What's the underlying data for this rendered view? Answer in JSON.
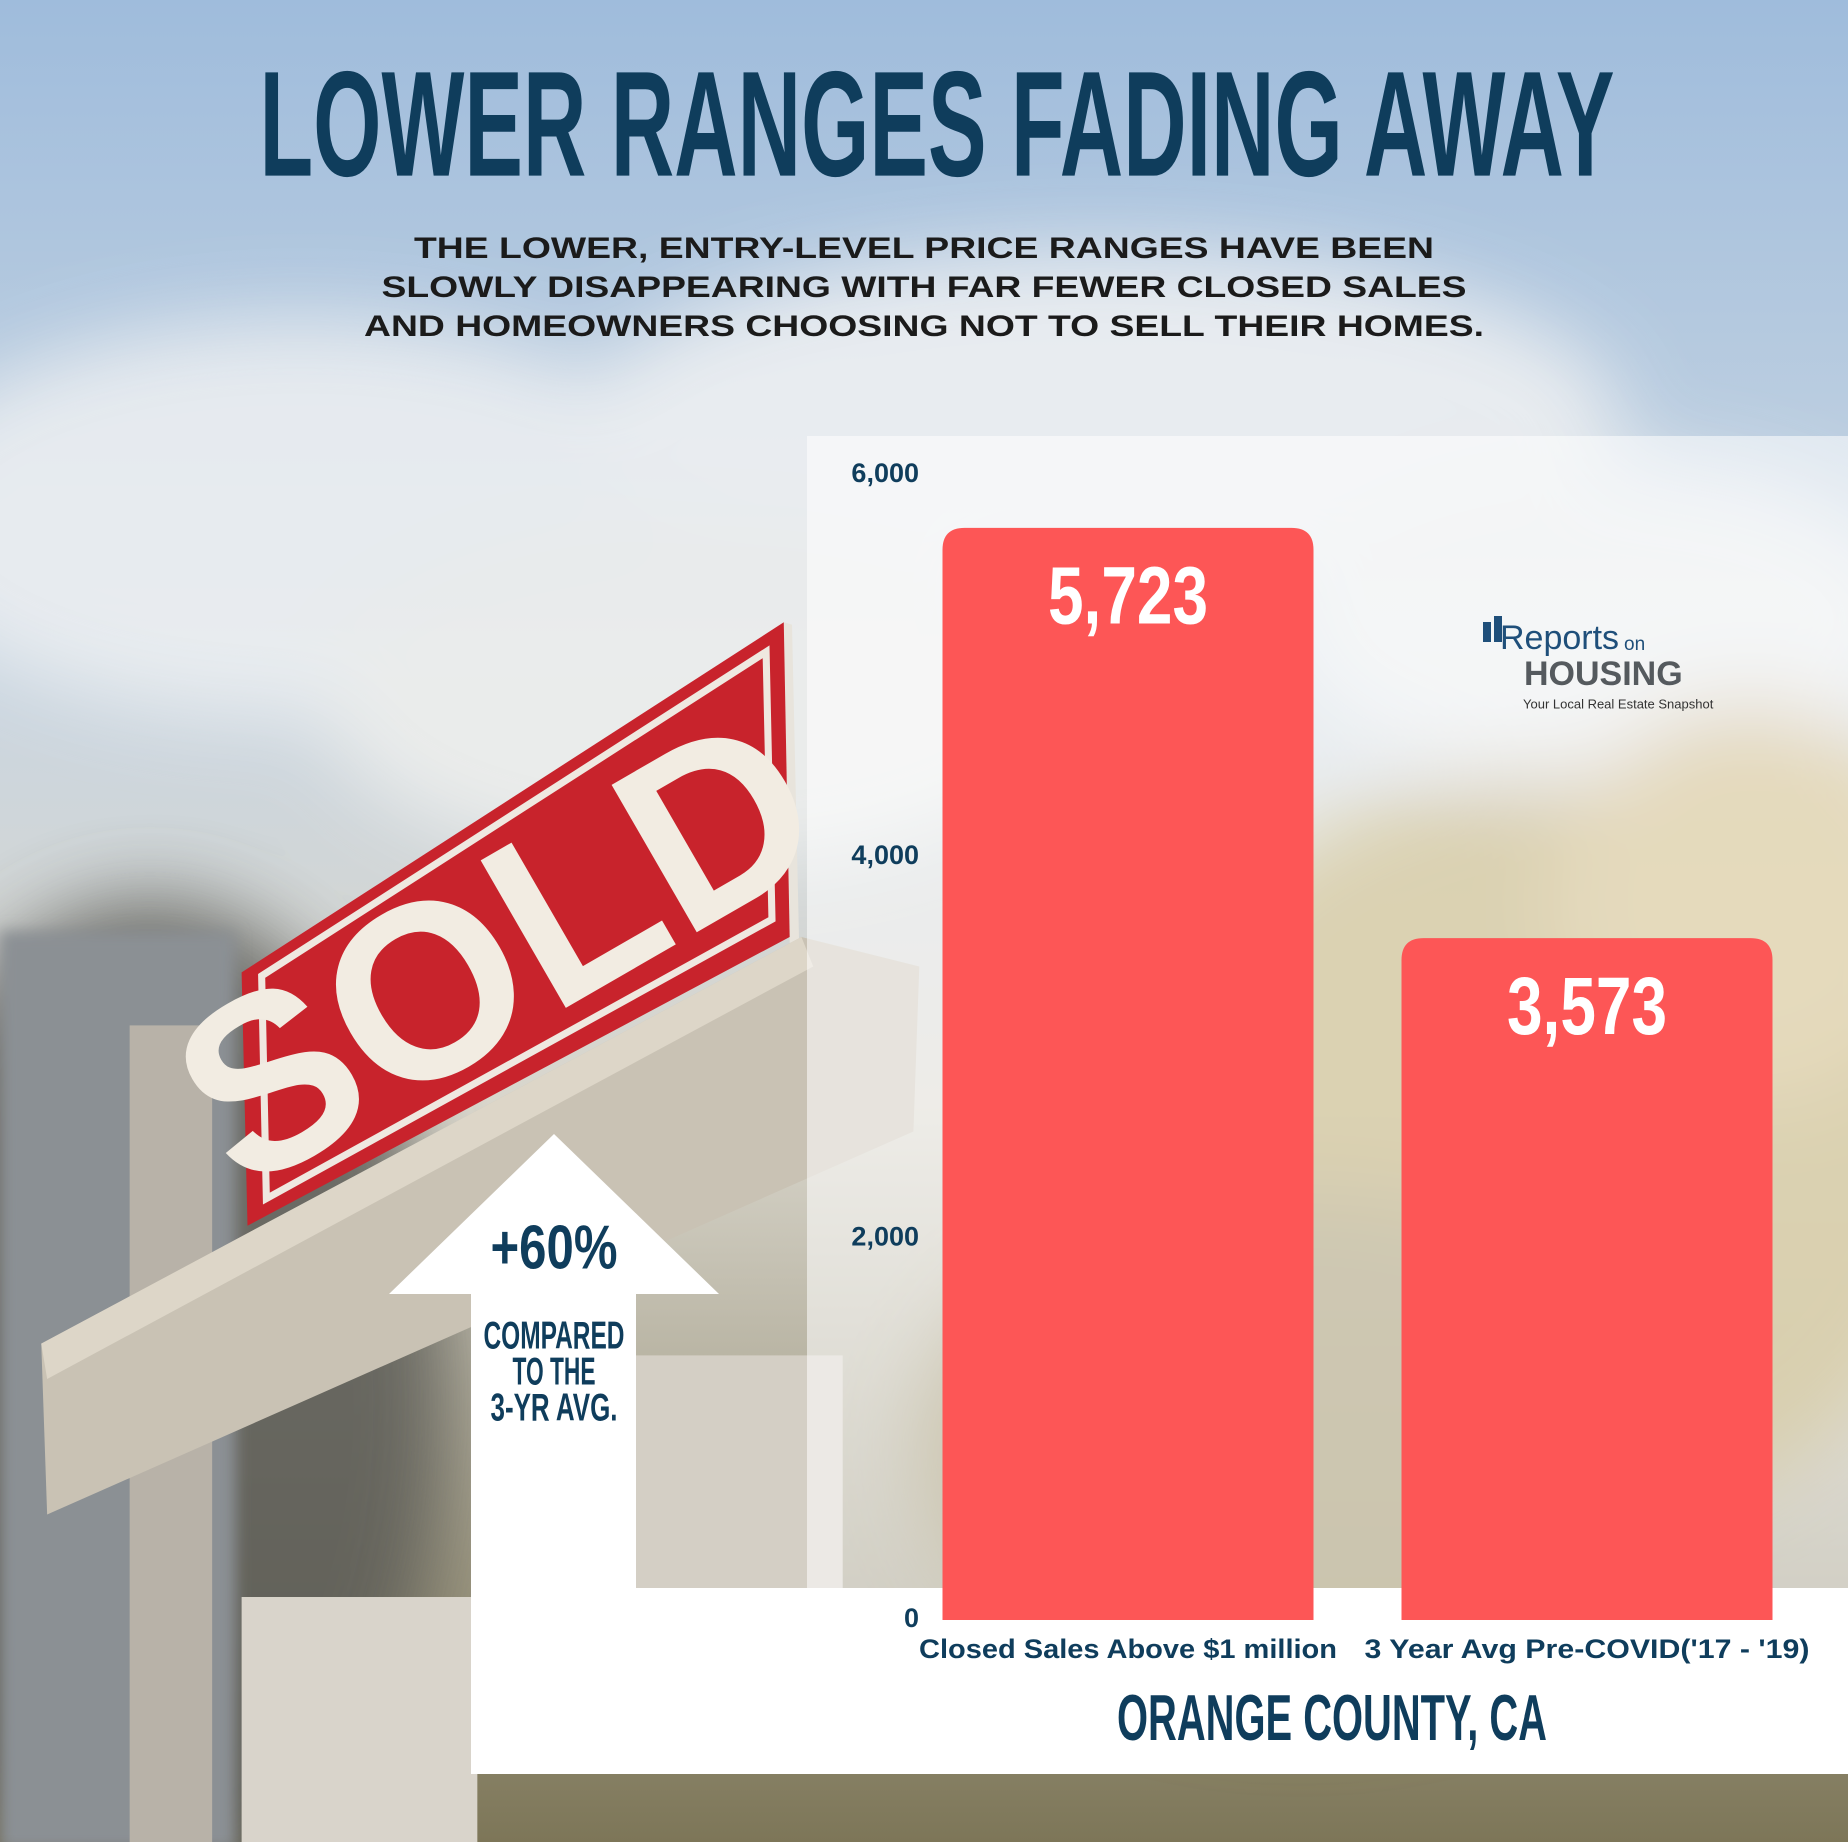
{
  "chart_data": {
    "type": "bar",
    "title": "LOWER RANGES FADING AWAY",
    "subtitle": [
      "THE LOWER, ENTRY-LEVEL PRICE RANGES HAVE BEEN",
      "SLOWLY DISAPPEARING WITH FAR FEWER CLOSED SALES",
      "AND HOMEOWNERS CHOOSING NOT TO SELL THEIR HOMES."
    ],
    "categories": [
      "Closed Sales Above $1 million",
      "3 Year Avg Pre-COVID('17 - '19)"
    ],
    "values": [
      5723,
      3573
    ],
    "value_labels": [
      "5,723",
      "3,573"
    ],
    "color": "#fd5656",
    "ylim": [
      0,
      6000
    ],
    "yticks": [
      0,
      {
        "value": 2000,
        "label": "2,000"
      },
      {
        "value": 4000,
        "label": "4,000"
      },
      {
        "value": 6000,
        "label": "6,000"
      }
    ],
    "grid": false,
    "xlabel": "ORANGE COUNTY, CA",
    "annotation": {
      "change": "+60%",
      "note": [
        "COMPARED",
        "TO THE",
        "3-YR AVG."
      ]
    }
  },
  "logo": {
    "name": [
      "Reports",
      "on",
      "HOUSING"
    ],
    "tagline": "Your Local Real Estate Snapshot"
  }
}
